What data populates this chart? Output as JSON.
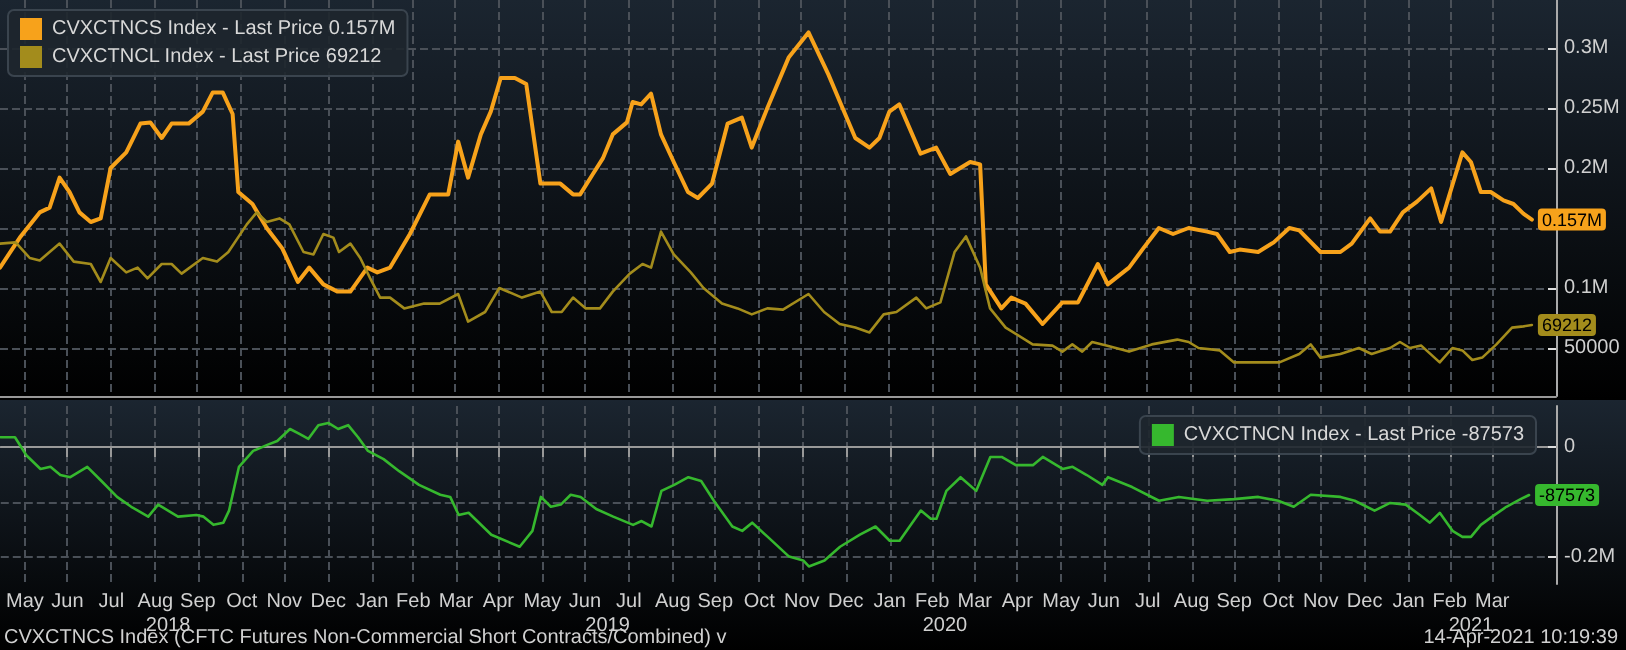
{
  "chart_data": [
    {
      "type": "line",
      "legend": "top left",
      "grid": true,
      "tick_labels": "y",
      "marker": "none",
      "line_style": "solid",
      "xlim": [
        "2018-04-29",
        "2021-04-30"
      ],
      "xticks": [
        {
          "value": "2018-05-16",
          "label": null
        },
        {
          "value": "2018-06-15",
          "label": null
        },
        {
          "value": "2018-07-16",
          "label": null
        },
        {
          "value": "2018-08-16",
          "label": null
        },
        {
          "value": "2018-09-15",
          "label": null
        },
        {
          "value": "2018-10-16",
          "label": null
        },
        {
          "value": "2018-11-15",
          "label": null
        },
        {
          "value": "2018-12-16",
          "label": null
        },
        {
          "value": "2019-01-16",
          "label": null
        },
        {
          "value": "2019-02-14",
          "label": null
        },
        {
          "value": "2019-03-16",
          "label": null
        },
        {
          "value": "2019-04-15",
          "label": null
        },
        {
          "value": "2019-05-16",
          "label": null
        },
        {
          "value": "2019-06-15",
          "label": null
        },
        {
          "value": "2019-07-16",
          "label": null
        },
        {
          "value": "2019-08-16",
          "label": null
        },
        {
          "value": "2019-09-15",
          "label": null
        },
        {
          "value": "2019-10-16",
          "label": null
        },
        {
          "value": "2019-11-15",
          "label": null
        },
        {
          "value": "2019-12-16",
          "label": null
        },
        {
          "value": "2020-01-16",
          "label": null
        },
        {
          "value": "2020-02-15",
          "label": null
        },
        {
          "value": "2020-03-16",
          "label": null
        },
        {
          "value": "2020-04-15",
          "label": null
        },
        {
          "value": "2020-05-16",
          "label": null
        },
        {
          "value": "2020-06-15",
          "label": null
        },
        {
          "value": "2020-07-16",
          "label": null
        },
        {
          "value": "2020-08-16",
          "label": null
        },
        {
          "value": "2020-09-15",
          "label": null
        },
        {
          "value": "2020-10-16",
          "label": null
        },
        {
          "value": "2020-11-15",
          "label": null
        },
        {
          "value": "2020-12-16",
          "label": null
        },
        {
          "value": "2021-01-16",
          "label": null
        },
        {
          "value": "2021-02-14",
          "label": null
        },
        {
          "value": "2021-03-16",
          "label": null
        }
      ],
      "ylim": [
        10000,
        340000
      ],
      "yticks": [
        50000,
        {
          "value": 100000,
          "label": "0.1M"
        },
        {
          "value": 150000,
          "label": null
        },
        {
          "value": 200000,
          "label": "0.2M"
        },
        {
          "value": 250000,
          "label": "0.25M"
        },
        {
          "value": 300000,
          "label": "0.3M"
        }
      ],
      "series": [
        {
          "name": "CVXCTNCS Index - Last Price 0.157M",
          "color": "#f7a21b",
          "x": [
            "2018-04-29",
            "2018-05-13",
            "2018-05-27",
            "2018-06-03",
            "2018-06-10",
            "2018-06-17",
            "2018-06-24",
            "2018-07-02",
            "2018-07-09",
            "2018-07-16",
            "2018-07-27",
            "2018-08-06",
            "2018-08-13",
            "2018-08-21",
            "2018-08-28",
            "2018-09-09",
            "2018-09-19",
            "2018-09-26",
            "2018-10-03",
            "2018-10-10",
            "2018-10-14",
            "2018-10-24",
            "2018-11-03",
            "2018-11-14",
            "2018-11-25",
            "2018-12-03",
            "2018-12-13",
            "2018-12-23",
            "2019-01-01",
            "2019-01-13",
            "2019-01-20",
            "2019-01-29",
            "2019-02-12",
            "2019-02-26",
            "2019-03-11",
            "2019-03-18",
            "2019-03-25",
            "2019-04-03",
            "2019-04-10",
            "2019-04-17",
            "2019-04-27",
            "2019-05-05",
            "2019-05-15",
            "2019-05-29",
            "2019-06-07",
            "2019-06-12",
            "2019-06-21",
            "2019-06-28",
            "2019-07-05",
            "2019-07-15",
            "2019-07-19",
            "2019-07-25",
            "2019-08-01",
            "2019-08-08",
            "2019-08-17",
            "2019-08-27",
            "2019-09-03",
            "2019-09-13",
            "2019-09-24",
            "2019-10-04",
            "2019-10-11",
            "2019-10-22",
            "2019-11-06",
            "2019-11-20",
            "2019-12-04",
            "2019-12-14",
            "2019-12-23",
            "2020-01-02",
            "2020-01-09",
            "2020-01-16",
            "2020-01-23",
            "2020-02-07",
            "2020-02-18",
            "2020-02-28",
            "2020-03-13",
            "2020-03-20",
            "2020-03-24",
            "2020-04-04",
            "2020-04-11",
            "2020-04-21",
            "2020-05-03",
            "2020-05-17",
            "2020-05-28",
            "2020-06-11",
            "2020-06-18",
            "2020-07-03",
            "2020-07-13",
            "2020-07-24",
            "2020-08-03",
            "2020-08-14",
            "2020-08-27",
            "2020-09-03",
            "2020-09-12",
            "2020-09-19",
            "2020-10-02",
            "2020-10-13",
            "2020-10-24",
            "2020-10-31",
            "2020-11-15",
            "2020-11-29",
            "2020-12-07",
            "2020-12-20",
            "2020-12-27",
            "2021-01-03",
            "2021-01-12",
            "2021-01-22",
            "2021-02-01",
            "2021-02-08",
            "2021-02-23",
            "2021-03-01",
            "2021-03-08",
            "2021-03-15",
            "2021-03-24",
            "2021-03-31",
            "2021-04-07",
            "2021-04-13"
          ],
          "values": [
            117000,
            142000,
            163000,
            167000,
            192000,
            180000,
            163000,
            155000,
            158000,
            200000,
            213000,
            237000,
            238000,
            225000,
            237000,
            237000,
            247000,
            263000,
            263000,
            245000,
            180000,
            170000,
            150000,
            133000,
            105000,
            117000,
            103000,
            97000,
            97000,
            117000,
            113000,
            117000,
            145000,
            178000,
            178000,
            222000,
            192000,
            228000,
            247000,
            275000,
            275000,
            270000,
            187000,
            187000,
            178000,
            178000,
            195000,
            208000,
            228000,
            238000,
            255000,
            253000,
            262000,
            228000,
            205000,
            180000,
            175000,
            187000,
            237000,
            242000,
            217000,
            250000,
            292000,
            313000,
            278000,
            250000,
            225000,
            217000,
            225000,
            247000,
            253000,
            212000,
            217000,
            195000,
            205000,
            203000,
            103000,
            83000,
            92000,
            87000,
            70000,
            88000,
            88000,
            120000,
            103000,
            117000,
            133000,
            150000,
            145000,
            150000,
            147000,
            145000,
            130000,
            132000,
            130000,
            138000,
            150000,
            148000,
            130000,
            130000,
            137000,
            158000,
            147000,
            147000,
            163000,
            172000,
            183000,
            155000,
            213000,
            205000,
            180000,
            180000,
            173000,
            170000,
            162000,
            157000
          ],
          "value_labels": [
            null,
            null,
            null,
            null,
            null,
            null,
            null,
            null,
            null,
            null,
            null,
            null,
            null,
            null,
            null,
            null,
            null,
            null,
            null,
            null,
            null,
            null,
            null,
            null,
            null,
            null,
            null,
            null,
            null,
            null,
            null,
            null,
            null,
            null,
            null,
            null,
            null,
            null,
            null,
            null,
            null,
            null,
            null,
            null,
            null,
            null,
            null,
            null,
            null,
            null,
            null,
            null,
            null,
            null,
            null,
            null,
            null,
            null,
            null,
            null,
            null,
            null,
            null,
            null,
            null,
            null,
            null,
            null,
            null,
            null,
            null,
            null,
            null,
            null,
            null,
            null,
            null,
            null,
            null,
            null,
            null,
            null,
            null,
            null,
            null,
            null,
            null,
            null,
            null,
            null,
            null,
            null,
            null,
            null,
            null,
            null,
            null,
            null,
            null,
            null,
            null,
            null,
            null,
            null,
            null,
            null,
            null,
            null,
            null,
            null,
            null,
            null,
            null,
            null,
            null,
            "0.157M"
          ]
        },
        {
          "name": "CVXCTNCL Index - Last Price 69212",
          "color": "#a38c1c",
          "x": [
            "2018-04-29",
            "2018-05-10",
            "2018-05-20",
            "2018-05-27",
            "2018-06-10",
            "2018-06-20",
            "2018-07-02",
            "2018-07-09",
            "2018-07-16",
            "2018-07-27",
            "2018-08-04",
            "2018-08-11",
            "2018-08-21",
            "2018-08-28",
            "2018-09-04",
            "2018-09-19",
            "2018-09-29",
            "2018-10-07",
            "2018-10-20",
            "2018-10-27",
            "2018-11-03",
            "2018-11-12",
            "2018-11-19",
            "2018-11-29",
            "2018-12-06",
            "2018-12-13",
            "2018-12-20",
            "2018-12-24",
            "2019-01-01",
            "2019-01-08",
            "2019-01-15",
            "2019-01-22",
            "2019-01-29",
            "2019-02-08",
            "2019-02-22",
            "2019-03-05",
            "2019-03-18",
            "2019-03-25",
            "2019-04-06",
            "2019-04-16",
            "2019-05-02",
            "2019-05-15",
            "2019-05-23",
            "2019-05-30",
            "2019-06-07",
            "2019-06-16",
            "2019-06-26",
            "2019-07-05",
            "2019-07-17",
            "2019-07-26",
            "2019-08-01",
            "2019-08-08",
            "2019-08-17",
            "2019-08-29",
            "2019-09-07",
            "2019-09-20",
            "2019-10-01",
            "2019-10-11",
            "2019-10-22",
            "2019-11-02",
            "2019-11-20",
            "2019-12-01",
            "2019-12-12",
            "2019-12-23",
            "2020-01-02",
            "2020-01-12",
            "2020-01-21",
            "2020-02-04",
            "2020-02-11",
            "2020-02-21",
            "2020-03-02",
            "2020-03-10",
            "2020-03-20",
            "2020-03-27",
            "2020-04-07",
            "2020-04-26",
            "2020-05-10",
            "2020-05-17",
            "2020-05-24",
            "2020-05-31",
            "2020-06-07",
            "2020-06-17",
            "2020-07-03",
            "2020-07-19",
            "2020-08-06",
            "2020-08-14",
            "2020-08-21",
            "2020-09-05",
            "2020-09-15",
            "2020-10-17",
            "2020-10-31",
            "2020-11-08",
            "2020-11-15",
            "2020-11-29",
            "2020-12-12",
            "2020-12-21",
            "2021-01-03",
            "2021-01-10",
            "2021-01-17",
            "2021-01-25",
            "2021-02-07",
            "2021-02-16",
            "2021-02-23",
            "2021-03-02",
            "2021-03-09",
            "2021-03-19",
            "2021-03-30",
            "2021-04-07",
            "2021-04-13"
          ],
          "values": [
            137000,
            138000,
            125000,
            123000,
            137000,
            122000,
            120000,
            105000,
            125000,
            113000,
            117000,
            108000,
            120000,
            120000,
            112000,
            125000,
            122000,
            130000,
            153000,
            163000,
            155000,
            158000,
            153000,
            130000,
            128000,
            145000,
            142000,
            130000,
            137000,
            125000,
            108000,
            92000,
            92000,
            83000,
            87000,
            87000,
            95000,
            72000,
            80000,
            100000,
            92000,
            97000,
            80000,
            80000,
            92000,
            83000,
            83000,
            97000,
            112000,
            120000,
            117000,
            147000,
            128000,
            113000,
            100000,
            87000,
            83000,
            78000,
            83000,
            82000,
            95000,
            80000,
            70000,
            67000,
            63000,
            78000,
            80000,
            92000,
            83000,
            88000,
            130000,
            143000,
            117000,
            83000,
            67000,
            53000,
            52000,
            47000,
            53000,
            47000,
            55000,
            52000,
            47000,
            53000,
            57000,
            55000,
            50000,
            48000,
            38000,
            38000,
            45000,
            53000,
            42000,
            45000,
            50000,
            45000,
            50000,
            55000,
            50000,
            52000,
            38000,
            50000,
            48000,
            40000,
            42000,
            53000,
            67000,
            68000,
            69212
          ],
          "value_labels": [
            null,
            null,
            null,
            null,
            null,
            null,
            null,
            null,
            null,
            null,
            null,
            null,
            null,
            null,
            null,
            null,
            null,
            null,
            null,
            null,
            null,
            null,
            null,
            null,
            null,
            null,
            null,
            null,
            null,
            null,
            null,
            null,
            null,
            null,
            null,
            null,
            null,
            null,
            null,
            null,
            null,
            null,
            null,
            null,
            null,
            null,
            null,
            null,
            null,
            null,
            null,
            null,
            null,
            null,
            null,
            null,
            null,
            null,
            null,
            null,
            null,
            null,
            null,
            null,
            null,
            null,
            null,
            null,
            null,
            null,
            null,
            null,
            null,
            null,
            null,
            null,
            null,
            null,
            null,
            null,
            null,
            null,
            null,
            null,
            null,
            null,
            null,
            null,
            null,
            null,
            null,
            null,
            null,
            null,
            null,
            null,
            null,
            null,
            null,
            null,
            null,
            null,
            null,
            null,
            null,
            null,
            null,
            null,
            "69212"
          ]
        }
      ]
    },
    {
      "type": "line",
      "legend": "top right",
      "grid": true,
      "marker": "none",
      "line_style": "solid",
      "xlim": [
        "2018-04-29",
        "2021-04-30"
      ],
      "xticks": [
        {
          "value": "2018-05-16",
          "label": "May"
        },
        {
          "value": "2018-06-15",
          "label": "Jun"
        },
        {
          "value": "2018-07-16",
          "label": "Jul"
        },
        {
          "value": "2018-08-16",
          "label": "Aug"
        },
        {
          "value": "2018-09-15",
          "label": "Sep"
        },
        {
          "value": "2018-10-16",
          "label": "Oct"
        },
        {
          "value": "2018-11-15",
          "label": "Nov"
        },
        {
          "value": "2018-12-16",
          "label": "Dec"
        },
        {
          "value": "2019-01-16",
          "label": "Jan"
        },
        {
          "value": "2019-02-14",
          "label": "Feb"
        },
        {
          "value": "2019-03-16",
          "label": "Mar"
        },
        {
          "value": "2019-04-15",
          "label": "Apr"
        },
        {
          "value": "2019-05-16",
          "label": "May"
        },
        {
          "value": "2019-06-15",
          "label": "Jun"
        },
        {
          "value": "2019-07-16",
          "label": "Jul"
        },
        {
          "value": "2019-08-16",
          "label": "Aug"
        },
        {
          "value": "2019-09-15",
          "label": "Sep"
        },
        {
          "value": "2019-10-16",
          "label": "Oct"
        },
        {
          "value": "2019-11-15",
          "label": "Nov"
        },
        {
          "value": "2019-12-16",
          "label": "Dec"
        },
        {
          "value": "2020-01-16",
          "label": "Jan"
        },
        {
          "value": "2020-02-15",
          "label": "Feb"
        },
        {
          "value": "2020-03-16",
          "label": "Mar"
        },
        {
          "value": "2020-04-15",
          "label": "Apr"
        },
        {
          "value": "2020-05-16",
          "label": "May"
        },
        {
          "value": "2020-06-15",
          "label": "Jun"
        },
        {
          "value": "2020-07-16",
          "label": "Jul"
        },
        {
          "value": "2020-08-16",
          "label": "Aug"
        },
        {
          "value": "2020-09-15",
          "label": "Sep"
        },
        {
          "value": "2020-10-16",
          "label": "Oct"
        },
        {
          "value": "2020-11-15",
          "label": "Nov"
        },
        {
          "value": "2020-12-16",
          "label": "Dec"
        },
        {
          "value": "2021-01-16",
          "label": "Jan"
        },
        {
          "value": "2021-02-14",
          "label": "Feb"
        },
        {
          "value": "2021-03-16",
          "label": "Mar"
        }
      ],
      "x2lim": [
        "2018-04-29",
        "2021-04-30"
      ],
      "x2ticks": [
        {
          "value": "2018-08-25",
          "label": "2018"
        },
        {
          "value": "2019-07-01",
          "label": "2019"
        },
        {
          "value": "2020-02-24",
          "label": "2020"
        },
        {
          "value": "2021-03-01",
          "label": "2021"
        }
      ],
      "ylim": [
        -250000,
        75000
      ],
      "yticks": [
        0,
        {
          "value": -100000,
          "label": null
        },
        {
          "value": -200000,
          "label": "-0.2M"
        }
      ],
      "series": [
        {
          "name": "CVXCTNCN Index - Last Price -87573",
          "color": "#36b82e",
          "x": [
            "2018-04-29",
            "2018-05-09",
            "2018-05-17",
            "2018-05-27",
            "2018-06-03",
            "2018-06-10",
            "2018-06-17",
            "2018-06-29",
            "2018-07-09",
            "2018-07-20",
            "2018-07-30",
            "2018-08-11",
            "2018-08-18",
            "2018-08-25",
            "2018-09-01",
            "2018-09-14",
            "2018-09-19",
            "2018-09-26",
            "2018-10-03",
            "2018-10-07",
            "2018-10-14",
            "2018-10-24",
            "2018-11-03",
            "2018-11-10",
            "2018-11-19",
            "2018-11-25",
            "2018-12-02",
            "2018-12-09",
            "2018-12-16",
            "2018-12-23",
            "2018-12-30",
            "2019-01-06",
            "2019-01-13",
            "2019-01-24",
            "2019-02-04",
            "2019-02-18",
            "2019-03-05",
            "2019-03-12",
            "2019-03-18",
            "2019-03-25",
            "2019-04-10",
            "2019-04-30",
            "2019-05-09",
            "2019-05-15",
            "2019-05-22",
            "2019-05-29",
            "2019-06-05",
            "2019-06-12",
            "2019-06-23",
            "2019-07-05",
            "2019-07-19",
            "2019-07-25",
            "2019-08-01",
            "2019-08-08",
            "2019-08-17",
            "2019-08-27",
            "2019-09-05",
            "2019-09-14",
            "2019-09-27",
            "2019-10-04",
            "2019-10-11",
            "2019-10-22",
            "2019-11-06",
            "2019-11-16",
            "2019-11-20",
            "2019-12-01",
            "2019-12-12",
            "2019-12-26",
            "2020-01-06",
            "2020-01-16",
            "2020-01-23",
            "2020-02-07",
            "2020-02-14",
            "2020-02-18",
            "2020-02-25",
            "2020-03-06",
            "2020-03-17",
            "2020-03-27",
            "2020-04-04",
            "2020-04-14",
            "2020-04-26",
            "2020-05-03",
            "2020-05-17",
            "2020-05-24",
            "2020-06-03",
            "2020-06-14",
            "2020-06-18",
            "2020-07-05",
            "2020-07-24",
            "2020-08-07",
            "2020-08-27",
            "2020-09-15",
            "2020-10-02",
            "2020-10-16",
            "2020-10-27",
            "2020-11-08",
            "2020-11-29",
            "2020-12-09",
            "2020-12-23",
            "2021-01-03",
            "2021-01-14",
            "2021-01-24",
            "2021-01-31",
            "2021-02-07",
            "2021-02-16",
            "2021-02-23",
            "2021-03-01",
            "2021-03-08",
            "2021-03-16",
            "2021-03-26",
            "2021-04-05",
            "2021-04-11"
          ],
          "values": [
            18000,
            18000,
            -15000,
            -40000,
            -36000,
            -51000,
            -55000,
            -36000,
            -62000,
            -91000,
            -109000,
            -127000,
            -105000,
            -116000,
            -127000,
            -124000,
            -127000,
            -142000,
            -138000,
            -116000,
            -36000,
            -7000,
            4000,
            11000,
            33000,
            25000,
            15000,
            40000,
            44000,
            33000,
            40000,
            18000,
            -7000,
            -22000,
            -44000,
            -69000,
            -87000,
            -91000,
            -124000,
            -120000,
            -160000,
            -182000,
            -153000,
            -91000,
            -109000,
            -105000,
            -87000,
            -91000,
            -113000,
            -127000,
            -142000,
            -135000,
            -145000,
            -80000,
            -69000,
            -55000,
            -62000,
            -98000,
            -145000,
            -153000,
            -138000,
            -164000,
            -200000,
            -207000,
            -218000,
            -207000,
            -182000,
            -160000,
            -145000,
            -171000,
            -171000,
            -116000,
            -131000,
            -131000,
            -80000,
            -55000,
            -80000,
            -18000,
            -18000,
            -33000,
            -33000,
            -18000,
            -40000,
            -36000,
            -51000,
            -69000,
            -55000,
            -73000,
            -98000,
            -91000,
            -98000,
            -95000,
            -91000,
            -98000,
            -109000,
            -87000,
            -91000,
            -98000,
            -116000,
            -102000,
            -105000,
            -124000,
            -138000,
            -120000,
            -153000,
            -164000,
            -164000,
            -142000,
            -127000,
            -109000,
            -95000,
            -87573
          ],
          "value_labels": [
            null,
            null,
            null,
            null,
            null,
            null,
            null,
            null,
            null,
            null,
            null,
            null,
            null,
            null,
            null,
            null,
            null,
            null,
            null,
            null,
            null,
            null,
            null,
            null,
            null,
            null,
            null,
            null,
            null,
            null,
            null,
            null,
            null,
            null,
            null,
            null,
            null,
            null,
            null,
            null,
            null,
            null,
            null,
            null,
            null,
            null,
            null,
            null,
            null,
            null,
            null,
            null,
            null,
            null,
            null,
            null,
            null,
            null,
            null,
            null,
            null,
            null,
            null,
            null,
            null,
            null,
            null,
            null,
            null,
            null,
            null,
            null,
            null,
            null,
            null,
            null,
            null,
            null,
            null,
            null,
            null,
            null,
            null,
            null,
            null,
            null,
            null,
            null,
            null,
            null,
            null,
            null,
            null,
            null,
            null,
            null,
            null,
            null,
            null,
            null,
            null,
            null,
            null,
            null,
            null,
            null,
            null,
            null,
            null,
            null,
            null,
            "-87573"
          ]
        }
      ],
      "annotations": [
        "CVXCTNCS Index (CFTC Futures Non-Commercial Short Contracts/Combined) v",
        "14-Apr-2021 10:19:39"
      ]
    }
  ]
}
